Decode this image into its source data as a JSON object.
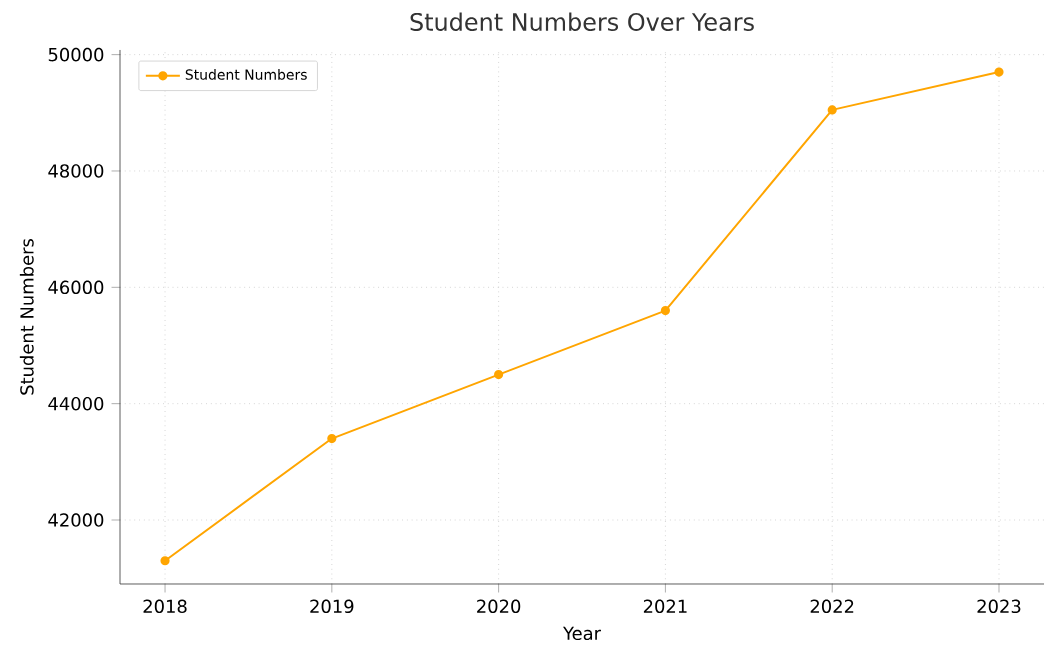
{
  "chart_data": {
    "type": "line",
    "title": "Student Numbers Over Years",
    "xlabel": "Year",
    "ylabel": "Student Numbers",
    "x": [
      2018,
      2019,
      2020,
      2021,
      2022,
      2023
    ],
    "series": [
      {
        "name": "Student Numbers",
        "color": "#ffa500",
        "values": [
          41300,
          43400,
          44500,
          45600,
          49050,
          49700
        ]
      }
    ],
    "xlim": [
      2017.73,
      2023.27
    ],
    "xticks": [
      2018,
      2019,
      2020,
      2021,
      2022,
      2023
    ],
    "ylim": [
      40900,
      50080
    ],
    "yticks": [
      42000,
      44000,
      46000,
      48000,
      50000
    ],
    "grid": true,
    "legend": "top left",
    "marker": "circle",
    "line_style": "solid"
  }
}
